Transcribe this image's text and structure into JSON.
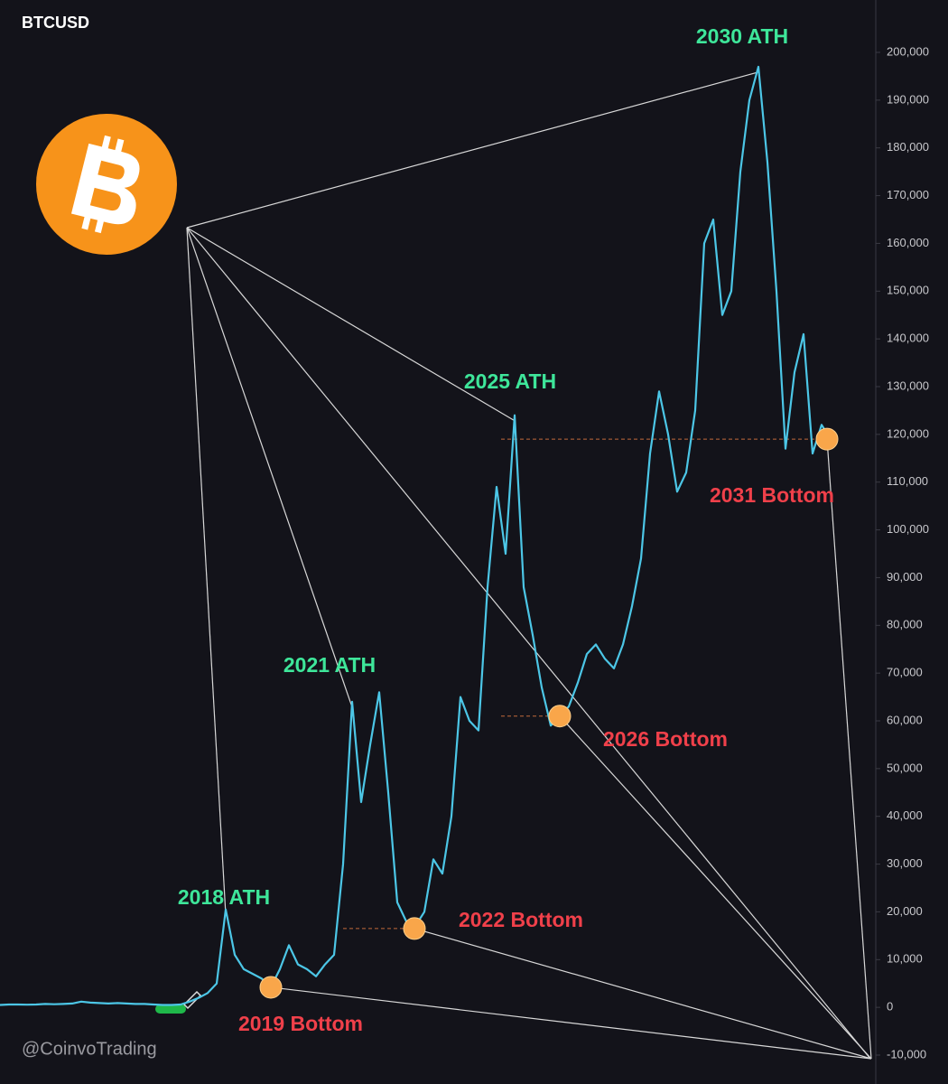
{
  "chart_data": {
    "type": "line",
    "title": "BTCUSD",
    "watermark": "@CoinvoTrading",
    "categories": [
      null,
      null,
      null,
      null,
      null,
      null,
      null,
      null,
      null,
      null,
      null,
      null,
      null,
      null,
      null,
      null,
      null,
      null,
      null,
      null,
      null,
      null,
      null,
      null,
      null,
      null,
      null,
      null,
      null,
      null,
      null,
      null,
      null,
      null,
      null,
      null,
      null,
      null,
      null,
      null,
      null,
      null,
      null,
      null,
      null,
      null,
      null,
      null,
      null,
      null,
      null,
      null,
      null,
      null,
      null,
      null,
      null,
      null,
      null,
      null,
      null,
      null,
      null,
      null,
      null,
      null,
      null,
      null,
      null,
      null,
      null,
      null,
      null,
      null,
      null,
      null,
      null,
      null,
      null,
      null,
      null,
      null,
      null,
      null,
      null,
      null,
      null,
      null,
      null,
      null,
      null,
      null,
      null
    ],
    "series": [
      {
        "name": "BTCUSD",
        "color": "#4cc6e6",
        "values": [
          500,
          600,
          600,
          550,
          600,
          700,
          650,
          700,
          800,
          1200,
          1000,
          900,
          800,
          900,
          800,
          700,
          700,
          600,
          500,
          500,
          600,
          1200,
          2000,
          3000,
          5000,
          20500,
          11000,
          8000,
          7000,
          6000,
          4200,
          8000,
          13000,
          9000,
          8000,
          6500,
          9000,
          11000,
          30000,
          64000,
          43000,
          55000,
          66000,
          45000,
          22000,
          18000,
          17000,
          20000,
          31000,
          28000,
          40000,
          65000,
          60000,
          58000,
          88000,
          109000,
          95000,
          124000,
          88000,
          78000,
          67000,
          59000,
          61000,
          63000,
          68000,
          74000,
          76000,
          73000,
          71000,
          76000,
          84000,
          94000,
          116000,
          129000,
          120000,
          108000,
          112000,
          125000,
          160000,
          165000,
          145000,
          150000,
          175000,
          190000,
          197000,
          177000,
          150000,
          117000,
          133000,
          141000,
          116000,
          122000,
          119000
        ]
      }
    ],
    "ath_labels": [
      "2018 ATH",
      "2021 ATH",
      "2025 ATH",
      "2030 ATH"
    ],
    "bottoms": [
      {
        "label": "2019 Bottom",
        "value": 4200
      },
      {
        "label": "2022 Bottom",
        "value": 16500
      },
      {
        "label": "2026 Bottom",
        "value": 61000
      },
      {
        "label": "2031 Bottom",
        "value": 119000
      }
    ],
    "ath_color": "#3ee69a",
    "bottom_color": "#f0404a",
    "dot_color": "#f9a64a",
    "ylim": [
      -10000,
      200000
    ],
    "yticks": [
      {
        "value": -10000,
        "label": "-10,000"
      },
      0,
      {
        "value": 10000,
        "label": "10,000"
      },
      {
        "value": 20000,
        "label": "20,000"
      },
      {
        "value": 30000,
        "label": "30,000"
      },
      {
        "value": 40000,
        "label": "40,000"
      },
      {
        "value": 50000,
        "label": "50,000"
      },
      {
        "value": 60000,
        "label": "60,000"
      },
      {
        "value": 70000,
        "label": "70,000"
      },
      {
        "value": 80000,
        "label": "80,000"
      },
      {
        "value": 90000,
        "label": "90,000"
      },
      {
        "value": 100000,
        "label": "100,000"
      },
      {
        "value": 110000,
        "label": "110,000"
      },
      {
        "value": 120000,
        "label": "120,000"
      },
      {
        "value": 130000,
        "label": "130,000"
      },
      {
        "value": 140000,
        "label": "140,000"
      },
      {
        "value": 150000,
        "label": "150,000"
      },
      {
        "value": 160000,
        "label": "160,000"
      },
      {
        "value": 170000,
        "label": "170,000"
      },
      {
        "value": 180000,
        "label": "180,000"
      },
      {
        "value": 190000,
        "label": "190,000"
      },
      {
        "value": 200000,
        "label": "200,000"
      }
    ],
    "grid": false
  }
}
